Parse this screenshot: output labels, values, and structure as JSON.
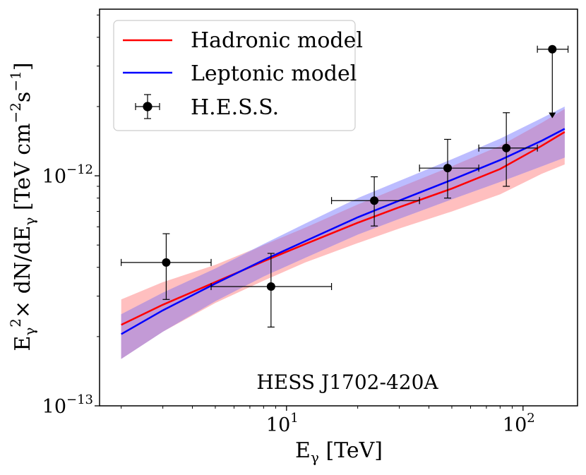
{
  "chart_data": {
    "type": "line",
    "title": "",
    "xlabel": "Eγ [TeV]",
    "xlabel_parts": {
      "main": "E",
      "sub": "γ",
      "units": " [TeV]"
    },
    "ylabel": "Eγ²× dN/dEγ [TeV cm⁻²s⁻¹]",
    "ylabel_parts": {
      "e": "E",
      "g1": "γ",
      "sq": "2",
      "mid": "× dN/dE",
      "g2": "γ",
      "units": " [TeV cm",
      "m2": "−2",
      "s": "s",
      "m1": "−1",
      "close": "]"
    },
    "xscale": "log",
    "yscale": "log",
    "xlim": [
      1.62,
      170
    ],
    "ylim": [
      1e-13,
      5.3e-12
    ],
    "xticks": [
      {
        "value": 10,
        "base": "10",
        "exp": "1"
      },
      {
        "value": 100,
        "base": "10",
        "exp": "2"
      }
    ],
    "yticks": [
      {
        "value": 1e-13,
        "base": "10",
        "exp": "−13"
      },
      {
        "value": 1e-12,
        "base": "10",
        "exp": "−12"
      }
    ],
    "annotation": "HESS J1702-420A",
    "legend": {
      "position": "top-left",
      "entries": [
        {
          "label": "Hadronic model",
          "key": "hadronic"
        },
        {
          "label": "Leptonic model",
          "key": "leptonic"
        },
        {
          "label": "H.E.S.S.",
          "key": "hess"
        }
      ]
    },
    "colors": {
      "hadronic": "#ff0000",
      "hadronic_band": "#ffbfbf",
      "leptonic": "#0000ff",
      "leptonic_band": "#a6a6ff",
      "overlap": "#c39ad6",
      "points": "#000000"
    },
    "series": [
      {
        "name": "Hadronic model",
        "key": "hadronic",
        "x": [
          2,
          3,
          5,
          8,
          12,
          20,
          30,
          50,
          80,
          120,
          150
        ],
        "y": [
          2.25e-13,
          2.75e-13,
          3.45e-13,
          4.25e-13,
          5.05e-13,
          6.25e-13,
          7.3e-13,
          8.8e-13,
          1.07e-12,
          1.35e-12,
          1.55e-12
        ],
        "band_low": [
          1.6e-13,
          2.1e-13,
          2.8e-13,
          3.5e-13,
          4.2e-13,
          5.1e-13,
          5.9e-13,
          7e-13,
          8.3e-13,
          1.02e-12,
          1.12e-12
        ],
        "band_high": [
          2.9e-13,
          3.45e-13,
          4.1e-13,
          5e-13,
          5.95e-13,
          7.5e-13,
          8.9e-13,
          1.1e-12,
          1.35e-12,
          1.7e-12,
          1.95e-12
        ]
      },
      {
        "name": "Leptonic model",
        "key": "leptonic",
        "x": [
          2,
          3,
          5,
          8,
          12,
          20,
          30,
          50,
          80,
          120,
          150
        ],
        "y": [
          2.05e-13,
          2.6e-13,
          3.4e-13,
          4.3e-13,
          5.2e-13,
          6.6e-13,
          7.8e-13,
          9.6e-13,
          1.17e-12,
          1.42e-12,
          1.6e-12
        ],
        "band_low": [
          1.6e-13,
          2.1e-13,
          2.85e-13,
          3.65e-13,
          4.4e-13,
          5.55e-13,
          6.5e-13,
          7.9e-13,
          9.4e-13,
          1.1e-12,
          1.2e-12
        ],
        "band_high": [
          2.5e-13,
          3.1e-13,
          3.95e-13,
          5.05e-13,
          6.2e-13,
          8e-13,
          9.5e-13,
          1.18e-12,
          1.45e-12,
          1.78e-12,
          2e-12
        ]
      }
    ],
    "points": {
      "name": "H.E.S.S.",
      "data": [
        {
          "x": 3.1,
          "y": 4.2e-13,
          "xlo": 2.0,
          "xhi": 4.8,
          "ylo": 2.9e-13,
          "yhi": 5.6e-13
        },
        {
          "x": 8.6,
          "y": 3.3e-13,
          "xlo": 4.8,
          "xhi": 15.5,
          "ylo": 2.2e-13,
          "yhi": 4.6e-13
        },
        {
          "x": 23.5,
          "y": 7.8e-13,
          "xlo": 15.5,
          "xhi": 36.5,
          "ylo": 6.05e-13,
          "yhi": 9.9e-13
        },
        {
          "x": 48,
          "y": 1.08e-12,
          "xlo": 36.5,
          "xhi": 65,
          "ylo": 8e-13,
          "yhi": 1.44e-12
        },
        {
          "x": 85,
          "y": 1.32e-12,
          "xlo": 65,
          "xhi": 115,
          "ylo": 9e-13,
          "yhi": 1.88e-12
        },
        {
          "x": 133,
          "y": 3.55e-12,
          "xlo": 115,
          "xhi": 155,
          "upper_limit": true,
          "ul_end": 1.78e-12
        }
      ]
    }
  }
}
